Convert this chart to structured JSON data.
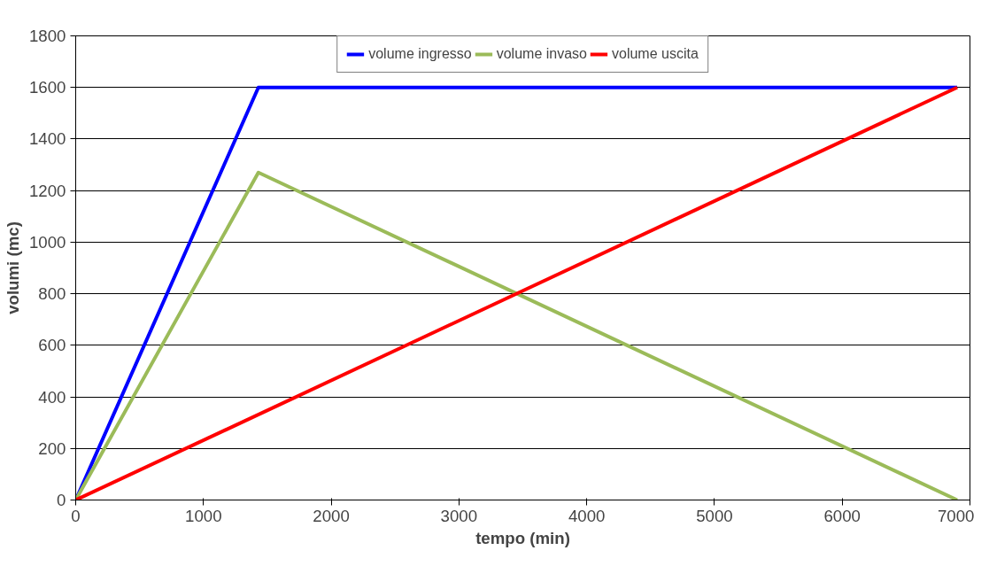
{
  "chart_data": {
    "type": "line",
    "xlabel": "tempo (min)",
    "ylabel": "volumi (mc)",
    "xlim": [
      0,
      7000
    ],
    "ylim": [
      0,
      1800
    ],
    "xticks": [
      0,
      1000,
      2000,
      3000,
      4000,
      5000,
      6000,
      7000
    ],
    "yticks": [
      0,
      200,
      400,
      600,
      800,
      1000,
      1200,
      1400,
      1600,
      1800
    ],
    "grid": "y",
    "legend": "top",
    "marker": "none",
    "line_style": "solid",
    "series": [
      {
        "name": "volume ingresso",
        "color": "#0000ff",
        "x": [
          0,
          1430,
          6900
        ],
        "values": [
          0,
          1600,
          1600
        ]
      },
      {
        "name": "volume invaso",
        "color": "#9bbb59",
        "x": [
          0,
          1430,
          6900
        ],
        "values": [
          0,
          1270,
          0
        ]
      },
      {
        "name": "volume uscita",
        "color": "#ff0000",
        "x": [
          0,
          6900
        ],
        "values": [
          0,
          1600
        ]
      }
    ]
  }
}
